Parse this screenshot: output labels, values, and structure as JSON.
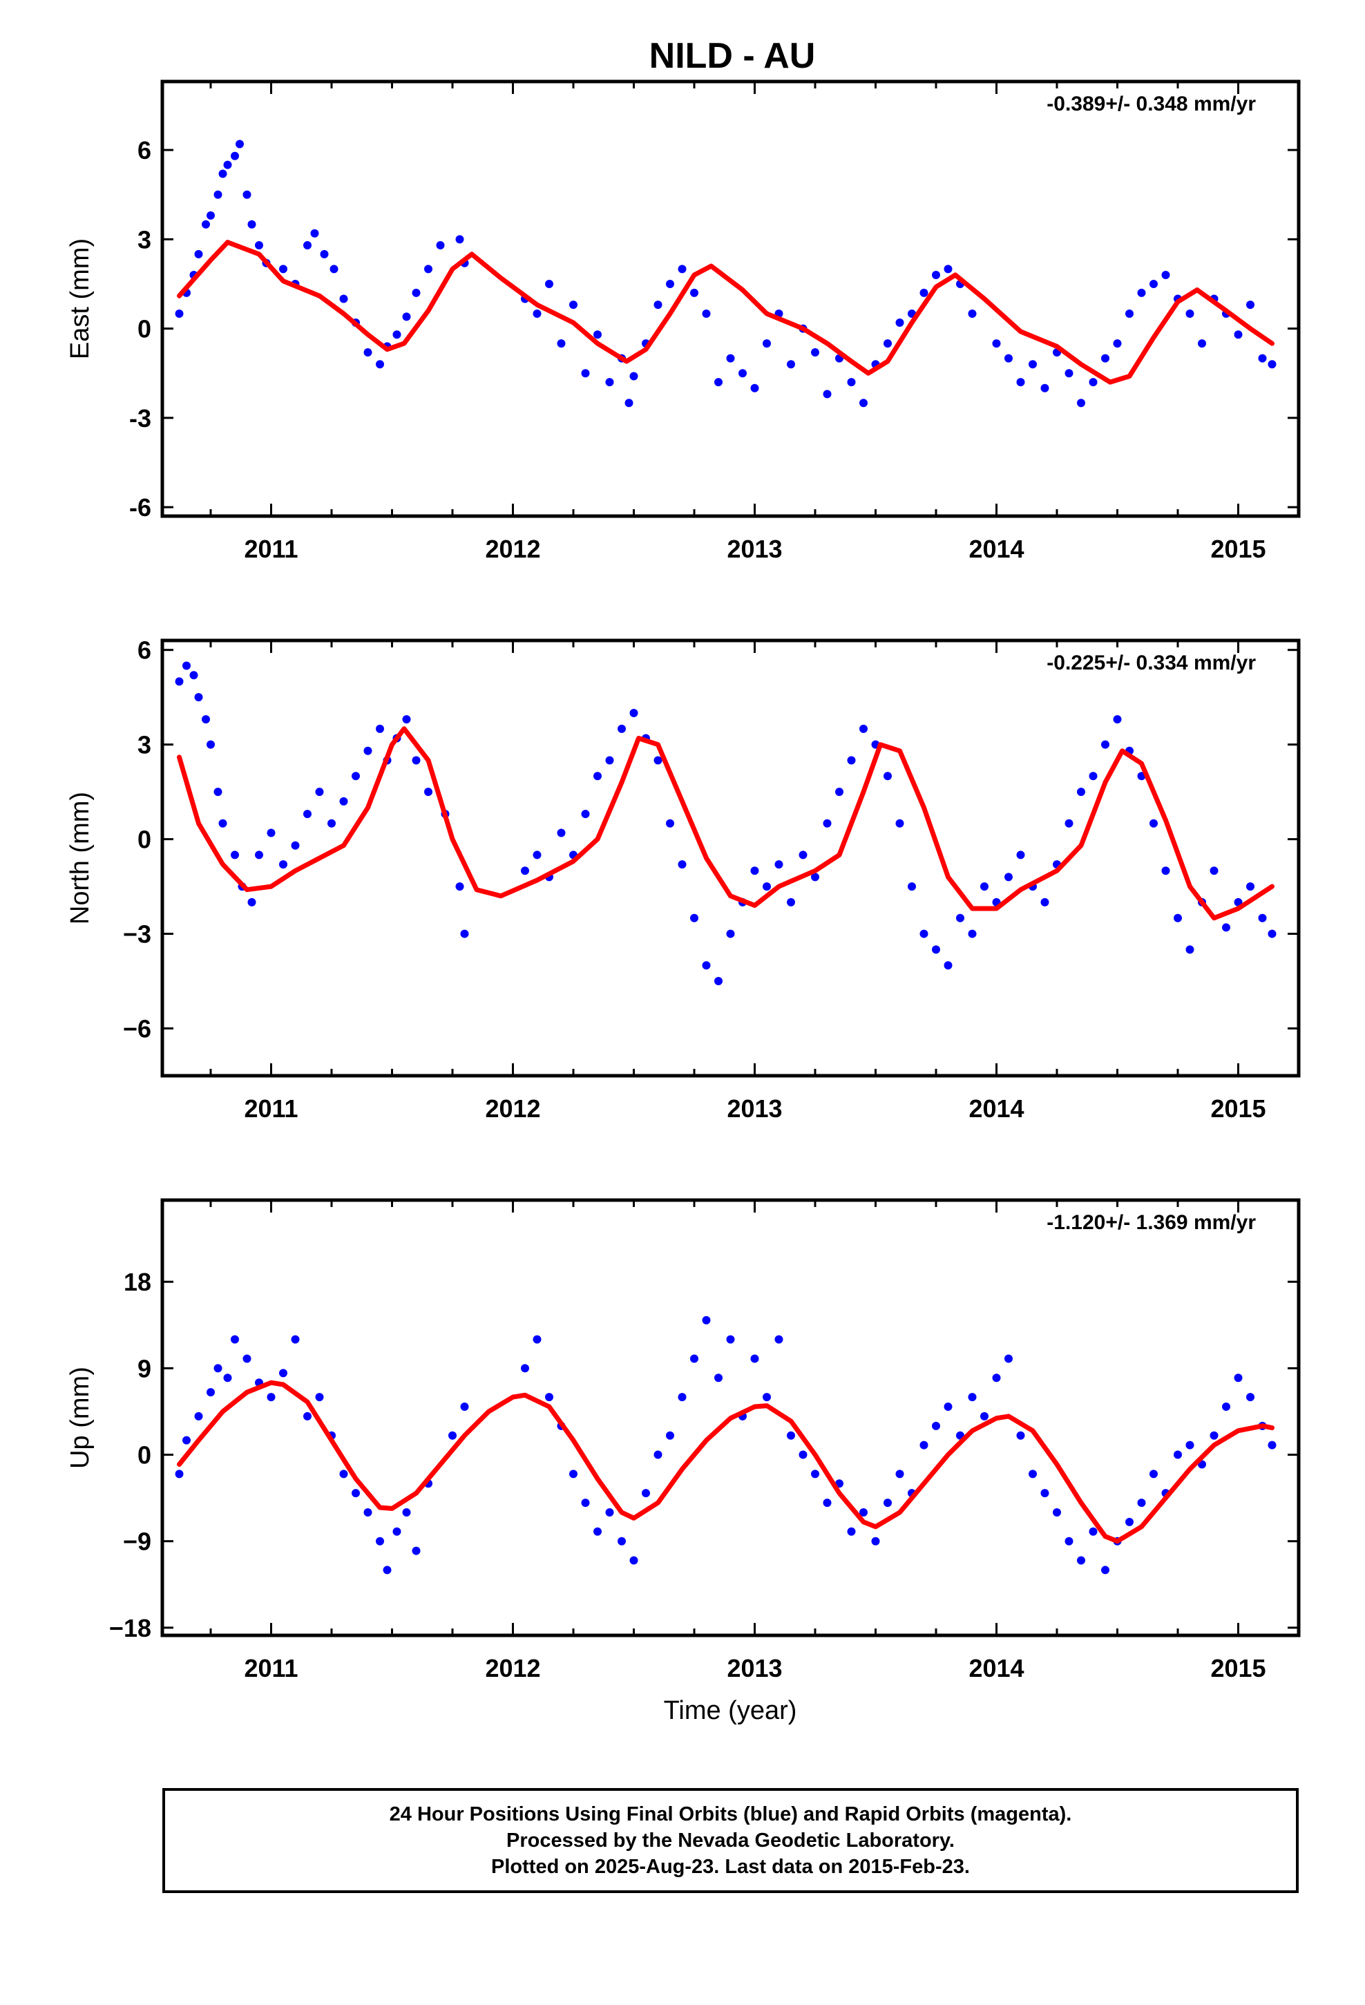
{
  "figure": {
    "title": "NILD - AU",
    "x_axis_label": "Time (year)",
    "colors": {
      "final_orbits": "#0000ff",
      "rapid_orbits": "#ff00ff",
      "model_fit": "#ff0000",
      "frame": "#000000"
    }
  },
  "footer": {
    "line1": "24 Hour Positions Using Final Orbits (blue) and Rapid Orbits (magenta).",
    "line2": "Processed by the Nevada Geodetic Laboratory.",
    "line3": "Plotted on 2025-Aug-23. Last data on 2015-Feb-23."
  },
  "chart_data": [
    {
      "type": "scatter",
      "ylabel": "East (mm)",
      "rate_annotation": "-0.389+/- 0.348 mm/yr",
      "xlim": [
        2010.55,
        2015.25
      ],
      "ylim": [
        -6.3,
        8.3
      ],
      "xticks": [
        2011,
        2012,
        2013,
        2014,
        2015
      ],
      "yticks": [
        -6,
        -3,
        0,
        3,
        6
      ],
      "ytick_labels": [
        "-6",
        "-3",
        "0",
        "3",
        "6"
      ],
      "series": [
        {
          "kind": "points",
          "x": [
            2010.62,
            2010.65,
            2010.68,
            2010.7,
            2010.73,
            2010.75,
            2010.78,
            2010.8,
            2010.82,
            2010.85,
            2010.87,
            2010.9,
            2010.92,
            2010.95,
            2010.98,
            2011.05,
            2011.1,
            2011.15,
            2011.18,
            2011.22,
            2011.26,
            2011.3,
            2011.35,
            2011.4,
            2011.45,
            2011.48,
            2011.52,
            2011.56,
            2011.6,
            2011.65,
            2011.7,
            2011.78,
            2011.8,
            2012.05,
            2012.1,
            2012.15,
            2012.2,
            2012.25,
            2012.3,
            2012.35,
            2012.4,
            2012.45,
            2012.48,
            2012.5,
            2012.55,
            2012.6,
            2012.65,
            2012.7,
            2012.75,
            2012.8,
            2012.85,
            2012.9,
            2012.95,
            2013.0,
            2013.05,
            2013.1,
            2013.15,
            2013.2,
            2013.25,
            2013.3,
            2013.35,
            2013.4,
            2013.45,
            2013.5,
            2013.55,
            2013.6,
            2013.65,
            2013.7,
            2013.75,
            2013.8,
            2013.85,
            2013.9,
            2014.0,
            2014.05,
            2014.1,
            2014.15,
            2014.2,
            2014.25,
            2014.3,
            2014.35,
            2014.4,
            2014.45,
            2014.5,
            2014.55,
            2014.6,
            2014.65,
            2014.7,
            2014.75,
            2014.8,
            2014.85,
            2014.9,
            2014.95,
            2015.0,
            2015.05,
            2015.1,
            2015.14
          ],
          "y": [
            0.5,
            1.2,
            1.8,
            2.5,
            3.5,
            3.8,
            4.5,
            5.2,
            5.5,
            5.8,
            6.2,
            4.5,
            3.5,
            2.8,
            2.2,
            2.0,
            1.5,
            2.8,
            3.2,
            2.5,
            2.0,
            1.0,
            0.2,
            -0.8,
            -1.2,
            -0.6,
            -0.2,
            0.4,
            1.2,
            2.0,
            2.8,
            3.0,
            2.2,
            1.0,
            0.5,
            1.5,
            -0.5,
            0.8,
            -1.5,
            -0.2,
            -1.8,
            -1.0,
            -2.5,
            -1.6,
            -0.5,
            0.8,
            1.5,
            2.0,
            1.2,
            0.5,
            -1.8,
            -1.0,
            -1.5,
            -2.0,
            -0.5,
            0.5,
            -1.2,
            0.0,
            -0.8,
            -2.2,
            -1.0,
            -1.8,
            -2.5,
            -1.2,
            -0.5,
            0.2,
            0.5,
            1.2,
            1.8,
            2.0,
            1.5,
            0.5,
            -0.5,
            -1.0,
            -1.8,
            -1.2,
            -2.0,
            -0.8,
            -1.5,
            -2.5,
            -1.8,
            -1.0,
            -0.5,
            0.5,
            1.2,
            1.5,
            1.8,
            1.0,
            0.5,
            -0.5,
            1.0,
            0.5,
            -0.2,
            0.8,
            -1.0,
            -1.2
          ]
        },
        {
          "kind": "fit_curve",
          "x": [
            2010.62,
            2010.75,
            2010.82,
            2010.95,
            2011.05,
            2011.2,
            2011.3,
            2011.4,
            2011.48,
            2011.55,
            2011.65,
            2011.75,
            2011.83,
            2011.95,
            2012.1,
            2012.25,
            2012.35,
            2012.47,
            2012.55,
            2012.65,
            2012.75,
            2012.82,
            2012.95,
            2013.05,
            2013.2,
            2013.3,
            2013.4,
            2013.47,
            2013.55,
            2013.65,
            2013.75,
            2013.83,
            2013.95,
            2014.1,
            2014.25,
            2014.35,
            2014.47,
            2014.55,
            2014.65,
            2014.75,
            2014.83,
            2014.95,
            2015.05,
            2015.14
          ],
          "y": [
            1.1,
            2.3,
            2.9,
            2.5,
            1.6,
            1.1,
            0.5,
            -0.2,
            -0.7,
            -0.5,
            0.6,
            2.0,
            2.5,
            1.7,
            0.8,
            0.2,
            -0.5,
            -1.1,
            -0.7,
            0.5,
            1.8,
            2.1,
            1.3,
            0.5,
            0.0,
            -0.5,
            -1.1,
            -1.5,
            -1.1,
            0.2,
            1.4,
            1.8,
            1.0,
            -0.1,
            -0.6,
            -1.2,
            -1.8,
            -1.6,
            -0.3,
            0.9,
            1.3,
            0.6,
            0.0,
            -0.5
          ]
        }
      ]
    },
    {
      "type": "scatter",
      "ylabel": "North (mm)",
      "rate_annotation": "-0.225+/- 0.334 mm/yr",
      "xlim": [
        2010.55,
        2015.25
      ],
      "ylim": [
        -7.5,
        6.3
      ],
      "xticks": [
        2011,
        2012,
        2013,
        2014,
        2015
      ],
      "yticks": [
        -6,
        -3,
        0,
        3,
        6
      ],
      "ytick_labels": [
        "−6",
        "−3",
        "0",
        "3",
        "6"
      ],
      "series": [
        {
          "kind": "points",
          "x": [
            2010.62,
            2010.65,
            2010.68,
            2010.7,
            2010.73,
            2010.75,
            2010.78,
            2010.8,
            2010.85,
            2010.88,
            2010.92,
            2010.95,
            2011.0,
            2011.05,
            2011.1,
            2011.15,
            2011.2,
            2011.25,
            2011.3,
            2011.35,
            2011.4,
            2011.45,
            2011.48,
            2011.52,
            2011.56,
            2011.6,
            2011.65,
            2011.72,
            2011.78,
            2011.8,
            2012.05,
            2012.1,
            2012.15,
            2012.2,
            2012.25,
            2012.3,
            2012.35,
            2012.4,
            2012.45,
            2012.5,
            2012.55,
            2012.6,
            2012.65,
            2012.7,
            2012.75,
            2012.8,
            2012.85,
            2012.9,
            2012.95,
            2013.0,
            2013.05,
            2013.1,
            2013.15,
            2013.2,
            2013.25,
            2013.3,
            2013.35,
            2013.4,
            2013.45,
            2013.5,
            2013.55,
            2013.6,
            2013.65,
            2013.7,
            2013.75,
            2013.8,
            2013.85,
            2013.9,
            2013.95,
            2014.0,
            2014.05,
            2014.1,
            2014.15,
            2014.2,
            2014.25,
            2014.3,
            2014.35,
            2014.4,
            2014.45,
            2014.5,
            2014.55,
            2014.6,
            2014.65,
            2014.7,
            2014.75,
            2014.8,
            2014.85,
            2014.9,
            2014.95,
            2015.0,
            2015.05,
            2015.1,
            2015.14
          ],
          "y": [
            5.0,
            5.5,
            5.2,
            4.5,
            3.8,
            3.0,
            1.5,
            0.5,
            -0.5,
            -1.5,
            -2.0,
            -0.5,
            0.2,
            -0.8,
            -0.2,
            0.8,
            1.5,
            0.5,
            1.2,
            2.0,
            2.8,
            3.5,
            2.5,
            3.2,
            3.8,
            2.5,
            1.5,
            0.8,
            -1.5,
            -3.0,
            -1.0,
            -0.5,
            -1.2,
            0.2,
            -0.5,
            0.8,
            2.0,
            2.5,
            3.5,
            4.0,
            3.2,
            2.5,
            0.5,
            -0.8,
            -2.5,
            -4.0,
            -4.5,
            -3.0,
            -2.0,
            -1.0,
            -1.5,
            -0.8,
            -2.0,
            -0.5,
            -1.2,
            0.5,
            1.5,
            2.5,
            3.5,
            3.0,
            2.0,
            0.5,
            -1.5,
            -3.0,
            -3.5,
            -4.0,
            -2.5,
            -3.0,
            -1.5,
            -2.0,
            -1.2,
            -0.5,
            -1.5,
            -2.0,
            -0.8,
            0.5,
            1.5,
            2.0,
            3.0,
            3.8,
            2.8,
            2.0,
            0.5,
            -1.0,
            -2.5,
            -3.5,
            -2.0,
            -1.0,
            -2.8,
            -2.0,
            -1.5,
            -2.5,
            -3.0
          ]
        },
        {
          "kind": "fit_curve",
          "x": [
            2010.62,
            2010.7,
            2010.8,
            2010.9,
            2011.0,
            2011.1,
            2011.2,
            2011.3,
            2011.4,
            2011.5,
            2011.55,
            2011.65,
            2011.75,
            2011.85,
            2011.95,
            2012.1,
            2012.25,
            2012.35,
            2012.45,
            2012.52,
            2012.6,
            2012.7,
            2012.8,
            2012.9,
            2013.0,
            2013.1,
            2013.25,
            2013.35,
            2013.45,
            2013.52,
            2013.6,
            2013.7,
            2013.8,
            2013.9,
            2014.0,
            2014.1,
            2014.25,
            2014.35,
            2014.45,
            2014.52,
            2014.6,
            2014.7,
            2014.8,
            2014.9,
            2015.0,
            2015.14
          ],
          "y": [
            2.6,
            0.5,
            -0.8,
            -1.6,
            -1.5,
            -1.0,
            -0.6,
            -0.2,
            1.0,
            3.0,
            3.5,
            2.5,
            0.0,
            -1.6,
            -1.8,
            -1.3,
            -0.7,
            0.0,
            1.8,
            3.2,
            3.0,
            1.2,
            -0.6,
            -1.8,
            -2.1,
            -1.5,
            -1.0,
            -0.5,
            1.5,
            3.0,
            2.8,
            1.0,
            -1.2,
            -2.2,
            -2.2,
            -1.6,
            -1.0,
            -0.2,
            1.8,
            2.8,
            2.4,
            0.6,
            -1.5,
            -2.5,
            -2.2,
            -1.5
          ]
        }
      ]
    },
    {
      "type": "scatter",
      "ylabel": "Up (mm)",
      "rate_annotation": "-1.120+/- 1.369 mm/yr",
      "xlim": [
        2010.55,
        2015.25
      ],
      "ylim": [
        -18.8,
        26.5
      ],
      "xticks": [
        2011,
        2012,
        2013,
        2014,
        2015
      ],
      "yticks": [
        -18,
        -9,
        0,
        9,
        18
      ],
      "ytick_labels": [
        "−18",
        "−9",
        "0",
        "9",
        "18"
      ],
      "series": [
        {
          "kind": "points",
          "x": [
            2010.62,
            2010.65,
            2010.7,
            2010.75,
            2010.78,
            2010.82,
            2010.85,
            2010.9,
            2010.95,
            2011.0,
            2011.05,
            2011.1,
            2011.15,
            2011.2,
            2011.25,
            2011.3,
            2011.35,
            2011.4,
            2011.45,
            2011.48,
            2011.52,
            2011.56,
            2011.6,
            2011.65,
            2011.75,
            2011.8,
            2012.05,
            2012.1,
            2012.15,
            2012.2,
            2012.25,
            2012.3,
            2012.35,
            2012.4,
            2012.45,
            2012.5,
            2012.55,
            2012.6,
            2012.65,
            2012.7,
            2012.75,
            2012.8,
            2012.85,
            2012.9,
            2012.95,
            2013.0,
            2013.05,
            2013.1,
            2013.15,
            2013.2,
            2013.25,
            2013.3,
            2013.35,
            2013.4,
            2013.45,
            2013.5,
            2013.55,
            2013.6,
            2013.65,
            2013.7,
            2013.75,
            2013.8,
            2013.85,
            2013.9,
            2013.95,
            2014.0,
            2014.05,
            2014.1,
            2014.15,
            2014.2,
            2014.25,
            2014.3,
            2014.35,
            2014.4,
            2014.45,
            2014.5,
            2014.55,
            2014.6,
            2014.65,
            2014.7,
            2014.75,
            2014.8,
            2014.85,
            2014.9,
            2014.95,
            2015.0,
            2015.05,
            2015.1,
            2015.14
          ],
          "y": [
            -2.0,
            1.5,
            4.0,
            6.5,
            9.0,
            8.0,
            12.0,
            10.0,
            7.5,
            6.0,
            8.5,
            12.0,
            4.0,
            6.0,
            2.0,
            -2.0,
            -4.0,
            -6.0,
            -9.0,
            -12.0,
            -8.0,
            -6.0,
            -10.0,
            -3.0,
            2.0,
            5.0,
            9.0,
            12.0,
            6.0,
            3.0,
            -2.0,
            -5.0,
            -8.0,
            -6.0,
            -9.0,
            -11.0,
            -4.0,
            0.0,
            2.0,
            6.0,
            10.0,
            14.0,
            8.0,
            12.0,
            4.0,
            10.0,
            6.0,
            12.0,
            2.0,
            0.0,
            -2.0,
            -5.0,
            -3.0,
            -8.0,
            -6.0,
            -9.0,
            -5.0,
            -2.0,
            -4.0,
            1.0,
            3.0,
            5.0,
            2.0,
            6.0,
            4.0,
            8.0,
            10.0,
            2.0,
            -2.0,
            -4.0,
            -6.0,
            -9.0,
            -11.0,
            -8.0,
            -12.0,
            -9.0,
            -7.0,
            -5.0,
            -2.0,
            -4.0,
            0.0,
            1.0,
            -1.0,
            2.0,
            5.0,
            8.0,
            6.0,
            3.0,
            1.0
          ]
        },
        {
          "kind": "fit_curve",
          "x": [
            2010.62,
            2010.7,
            2010.8,
            2010.9,
            2011.0,
            2011.05,
            2011.15,
            2011.25,
            2011.35,
            2011.45,
            2011.5,
            2011.6,
            2011.7,
            2011.8,
            2011.9,
            2012.0,
            2012.05,
            2012.15,
            2012.25,
            2012.35,
            2012.45,
            2012.5,
            2012.6,
            2012.7,
            2012.8,
            2012.9,
            2013.0,
            2013.05,
            2013.15,
            2013.25,
            2013.35,
            2013.45,
            2013.5,
            2013.6,
            2013.7,
            2013.8,
            2013.9,
            2014.0,
            2014.05,
            2014.15,
            2014.25,
            2014.35,
            2014.45,
            2014.5,
            2014.6,
            2014.7,
            2014.8,
            2014.9,
            2015.0,
            2015.1,
            2015.14
          ],
          "y": [
            -1.0,
            1.5,
            4.5,
            6.5,
            7.5,
            7.3,
            5.5,
            1.5,
            -2.5,
            -5.5,
            -5.6,
            -4.0,
            -1.0,
            2.0,
            4.5,
            6.0,
            6.2,
            5.0,
            1.5,
            -2.5,
            -6.0,
            -6.6,
            -5.0,
            -1.5,
            1.5,
            3.8,
            5.0,
            5.1,
            3.5,
            0.0,
            -4.0,
            -7.0,
            -7.5,
            -6.0,
            -3.0,
            0.0,
            2.5,
            3.8,
            4.0,
            2.5,
            -1.0,
            -5.0,
            -8.5,
            -9.0,
            -7.5,
            -4.5,
            -1.5,
            1.0,
            2.5,
            3.0,
            2.8
          ]
        }
      ]
    }
  ]
}
